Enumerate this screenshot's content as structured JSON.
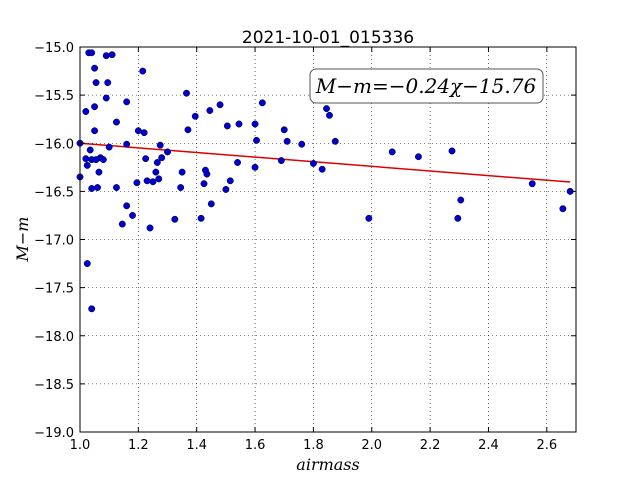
{
  "chart_data": {
    "type": "scatter",
    "title": "2021-10-01_015336",
    "xlabel": "airmass",
    "ylabel": "M−m",
    "xlim": [
      1.0,
      2.7
    ],
    "ylim": [
      -19.0,
      -15.0
    ],
    "y_inverted": false,
    "grid": true,
    "x_ticks": [
      1.0,
      1.2,
      1.4,
      1.6,
      1.8,
      2.0,
      2.2,
      2.4,
      2.6
    ],
    "x_tick_labels": [
      "1.0",
      "1.2",
      "1.4",
      "1.6",
      "1.8",
      "2.0",
      "2.2",
      "2.4",
      "2.6"
    ],
    "y_ticks": [
      -15.0,
      -15.5,
      -16.0,
      -16.5,
      -17.0,
      -17.5,
      -18.0,
      -18.5,
      -19.0
    ],
    "y_tick_labels": [
      "−15.0",
      "−15.5",
      "−16.0",
      "−16.5",
      "−17.0",
      "−17.5",
      "−18.0",
      "−18.5",
      "−19.0"
    ],
    "annotation": "M−m=−0.24χ−15.76",
    "point_color": "#0000cc",
    "line_color": "#dd0000",
    "fit_line": {
      "slope": -0.24,
      "intercept": -15.76,
      "x_range": [
        1.0,
        2.68
      ]
    },
    "points": [
      {
        "x": 1.0,
        "y": -16.0
      },
      {
        "x": 1.0,
        "y": -16.35
      },
      {
        "x": 1.02,
        "y": -15.67
      },
      {
        "x": 1.02,
        "y": -16.16
      },
      {
        "x": 1.025,
        "y": -16.23
      },
      {
        "x": 1.025,
        "y": -17.25
      },
      {
        "x": 1.03,
        "y": -15.06
      },
      {
        "x": 1.04,
        "y": -15.06
      },
      {
        "x": 1.035,
        "y": -16.07
      },
      {
        "x": 1.04,
        "y": -16.17
      },
      {
        "x": 1.04,
        "y": -16.47
      },
      {
        "x": 1.04,
        "y": -17.72
      },
      {
        "x": 1.05,
        "y": -15.22
      },
      {
        "x": 1.055,
        "y": -15.37
      },
      {
        "x": 1.05,
        "y": -15.62
      },
      {
        "x": 1.05,
        "y": -15.87
      },
      {
        "x": 1.055,
        "y": -16.17
      },
      {
        "x": 1.06,
        "y": -16.46
      },
      {
        "x": 1.065,
        "y": -16.3
      },
      {
        "x": 1.07,
        "y": -16.15
      },
      {
        "x": 1.08,
        "y": -16.17
      },
      {
        "x": 1.09,
        "y": -15.09
      },
      {
        "x": 1.09,
        "y": -15.53
      },
      {
        "x": 1.095,
        "y": -15.37
      },
      {
        "x": 1.1,
        "y": -16.04
      },
      {
        "x": 1.11,
        "y": -15.08
      },
      {
        "x": 1.125,
        "y": -15.78
      },
      {
        "x": 1.125,
        "y": -16.46
      },
      {
        "x": 1.145,
        "y": -16.84
      },
      {
        "x": 1.16,
        "y": -15.57
      },
      {
        "x": 1.16,
        "y": -16.01
      },
      {
        "x": 1.16,
        "y": -16.65
      },
      {
        "x": 1.18,
        "y": -16.75
      },
      {
        "x": 1.195,
        "y": -16.41
      },
      {
        "x": 1.2,
        "y": -15.87
      },
      {
        "x": 1.215,
        "y": -15.25
      },
      {
        "x": 1.22,
        "y": -15.89
      },
      {
        "x": 1.225,
        "y": -16.16
      },
      {
        "x": 1.23,
        "y": -16.39
      },
      {
        "x": 1.24,
        "y": -16.88
      },
      {
        "x": 1.25,
        "y": -16.4
      },
      {
        "x": 1.26,
        "y": -16.3
      },
      {
        "x": 1.265,
        "y": -16.2
      },
      {
        "x": 1.27,
        "y": -16.37
      },
      {
        "x": 1.275,
        "y": -16.02
      },
      {
        "x": 1.28,
        "y": -16.15
      },
      {
        "x": 1.3,
        "y": -16.09
      },
      {
        "x": 1.325,
        "y": -16.79
      },
      {
        "x": 1.345,
        "y": -16.46
      },
      {
        "x": 1.35,
        "y": -16.3
      },
      {
        "x": 1.365,
        "y": -15.48
      },
      {
        "x": 1.37,
        "y": -15.86
      },
      {
        "x": 1.395,
        "y": -15.72
      },
      {
        "x": 1.415,
        "y": -16.78
      },
      {
        "x": 1.425,
        "y": -16.42
      },
      {
        "x": 1.43,
        "y": -16.28
      },
      {
        "x": 1.435,
        "y": -16.32
      },
      {
        "x": 1.445,
        "y": -15.66
      },
      {
        "x": 1.45,
        "y": -16.63
      },
      {
        "x": 1.48,
        "y": -15.6
      },
      {
        "x": 1.5,
        "y": -16.48
      },
      {
        "x": 1.505,
        "y": -15.82
      },
      {
        "x": 1.515,
        "y": -16.39
      },
      {
        "x": 1.54,
        "y": -16.2
      },
      {
        "x": 1.545,
        "y": -15.8
      },
      {
        "x": 1.6,
        "y": -15.8
      },
      {
        "x": 1.6,
        "y": -16.25
      },
      {
        "x": 1.605,
        "y": -15.97
      },
      {
        "x": 1.625,
        "y": -15.58
      },
      {
        "x": 1.69,
        "y": -16.18
      },
      {
        "x": 1.7,
        "y": -15.86
      },
      {
        "x": 1.71,
        "y": -15.98
      },
      {
        "x": 1.76,
        "y": -16.01
      },
      {
        "x": 1.8,
        "y": -16.21
      },
      {
        "x": 1.83,
        "y": -16.27
      },
      {
        "x": 1.845,
        "y": -15.64
      },
      {
        "x": 1.855,
        "y": -15.71
      },
      {
        "x": 1.875,
        "y": -15.98
      },
      {
        "x": 1.99,
        "y": -16.78
      },
      {
        "x": 2.07,
        "y": -16.09
      },
      {
        "x": 2.16,
        "y": -16.14
      },
      {
        "x": 2.275,
        "y": -16.08
      },
      {
        "x": 2.295,
        "y": -16.78
      },
      {
        "x": 2.305,
        "y": -16.59
      },
      {
        "x": 2.55,
        "y": -16.42
      },
      {
        "x": 2.655,
        "y": -16.68
      },
      {
        "x": 2.68,
        "y": -16.5
      }
    ]
  }
}
